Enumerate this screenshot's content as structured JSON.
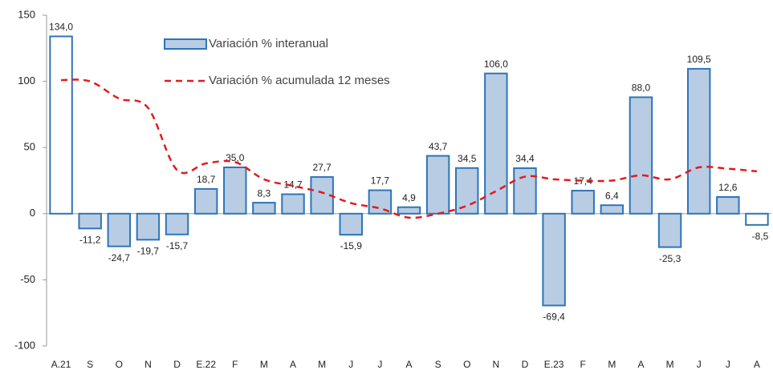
{
  "chart_data": {
    "type": "bar_line",
    "categories": [
      "A.21",
      "S",
      "O",
      "N",
      "D",
      "E.22",
      "F",
      "M",
      "A",
      "M",
      "J",
      "J",
      "A",
      "S",
      "O",
      "N",
      "D",
      "E.23",
      "F",
      "M",
      "A",
      "M",
      "J",
      "J",
      "A"
    ],
    "series": [
      {
        "name": "Variación % interanual",
        "type": "bar",
        "color": "#b8cce4",
        "edge_color": "#2e75b6",
        "colors": [
          "#ffffff",
          "#b8cce4",
          "#b8cce4",
          "#b8cce4",
          "#b8cce4",
          "#b8cce4",
          "#b8cce4",
          "#b8cce4",
          "#b8cce4",
          "#b8cce4",
          "#b8cce4",
          "#b8cce4",
          "#b8cce4",
          "#b8cce4",
          "#b8cce4",
          "#b8cce4",
          "#b8cce4",
          "#b8cce4",
          "#b8cce4",
          "#b8cce4",
          "#b8cce4",
          "#b8cce4",
          "#b8cce4",
          "#b8cce4",
          "#ffffff"
        ],
        "values": [
          134.0,
          -11.2,
          -24.7,
          -19.7,
          -15.7,
          18.7,
          35.0,
          8.3,
          14.7,
          27.7,
          -15.9,
          17.7,
          4.9,
          43.7,
          34.5,
          106.0,
          34.4,
          -69.4,
          17.4,
          6.4,
          88.0,
          -25.3,
          109.5,
          12.6,
          -8.5
        ],
        "value_labels": [
          "134,0",
          "-11,2",
          "-24,7",
          "-19,7",
          "-15,7",
          "18,7",
          "35,0",
          "8,3",
          "14,7",
          "27,7",
          "-15,9",
          "17,7",
          "4,9",
          "43,7",
          "34,5",
          "106,0",
          "34,4",
          "-69,4",
          "17,4",
          "6,4",
          "88,0",
          "-25,3",
          "109,5",
          "12,6",
          "-8,5"
        ]
      },
      {
        "name": "Variación % acumulada 12 meses",
        "type": "line",
        "color": "#e31a1c",
        "values": [
          101,
          100,
          87,
          80,
          33,
          38,
          39,
          26,
          21,
          16,
          8,
          4,
          -3,
          0,
          6,
          17,
          28,
          26,
          25,
          25,
          29,
          26,
          35,
          34,
          32
        ]
      }
    ],
    "ylim": [
      -100,
      150
    ],
    "yticks": [
      -100,
      -50,
      0,
      50,
      100,
      150
    ]
  }
}
